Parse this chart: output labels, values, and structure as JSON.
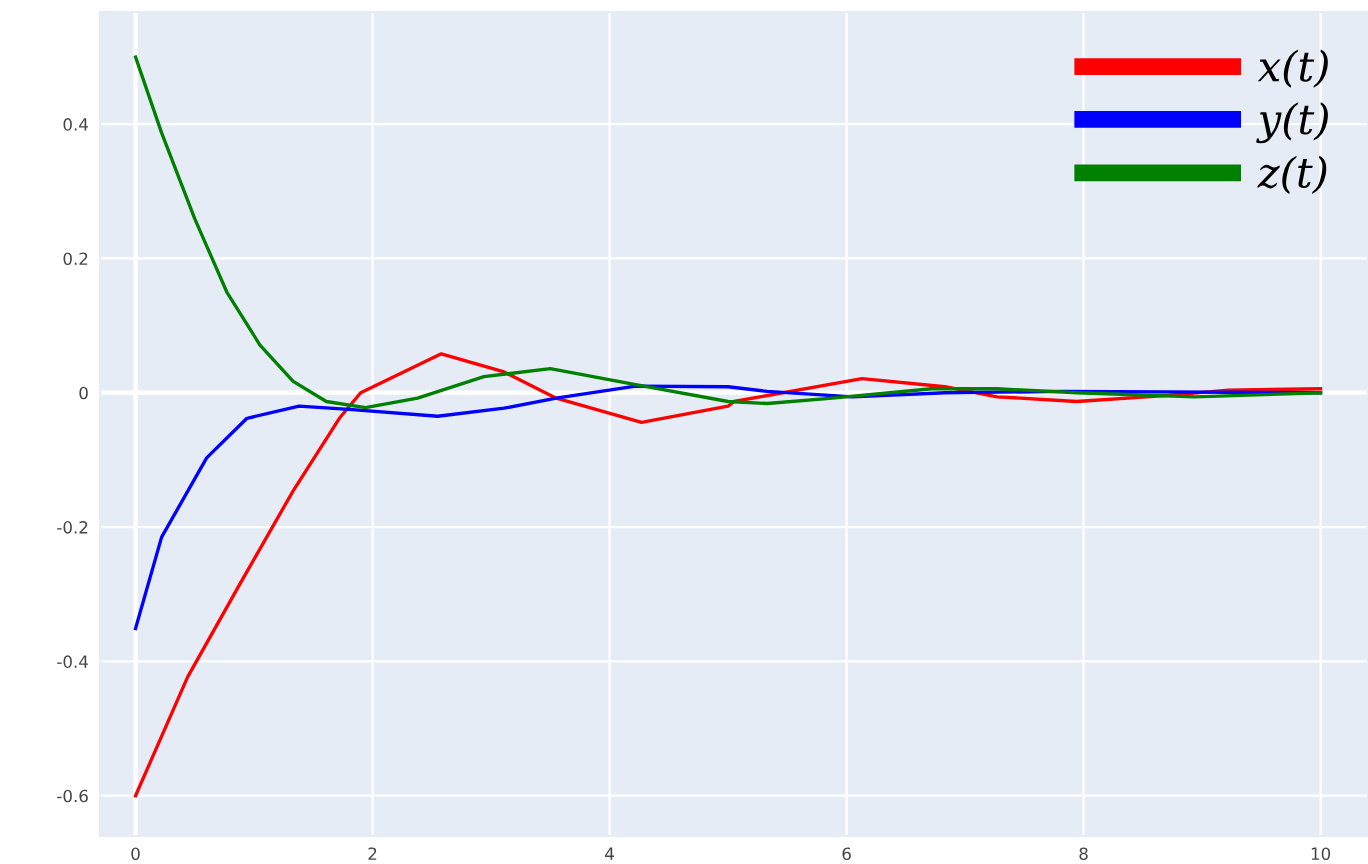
{
  "chart_data": {
    "type": "line",
    "x": [
      0,
      0.44,
      0.88,
      1.33,
      1.72,
      1.9,
      2.58,
      3.11,
      3.55,
      4.27,
      5.0,
      5.05,
      6.13,
      6.83,
      7.27,
      7.94,
      8.72,
      9.22,
      10
    ],
    "series": [
      {
        "name": "x(t)",
        "color": "#ff0000",
        "values": [
          -0.6,
          -0.423,
          -0.285,
          -0.146,
          -0.038,
          0.0,
          0.058,
          0.031,
          -0.008,
          -0.044,
          -0.02,
          -0.013,
          0.021,
          0.009,
          -0.006,
          -0.013,
          -0.004,
          0.004,
          0.006
        ]
      },
      {
        "name": "y(t)",
        "color": "#0000ff",
        "x": [
          0,
          0.22,
          0.6,
          0.94,
          1.38,
          1.83,
          2.55,
          3.11,
          3.55,
          4.22,
          5.0,
          5.33,
          6.05,
          6.83,
          7.83,
          10
        ],
        "values": [
          -0.351,
          -0.215,
          -0.097,
          -0.038,
          -0.02,
          -0.025,
          -0.035,
          -0.023,
          -0.008,
          0.01,
          0.009,
          0.002,
          -0.006,
          0.0,
          0.002,
          0.0
        ]
      },
      {
        "name": "z(t)",
        "color": "#008000",
        "x": [
          0,
          0.22,
          0.5,
          0.77,
          1.05,
          1.33,
          1.61,
          1.94,
          2.38,
          2.94,
          3.5,
          4.22,
          5.0,
          5.33,
          5.88,
          6.72,
          7.27,
          7.94,
          8.94,
          10
        ],
        "values": [
          0.5,
          0.387,
          0.259,
          0.15,
          0.071,
          0.017,
          -0.013,
          -0.022,
          -0.008,
          0.024,
          0.036,
          0.012,
          -0.013,
          -0.016,
          -0.008,
          0.006,
          0.006,
          0.0,
          -0.006,
          0.0
        ]
      }
    ],
    "xlim": [
      -0.3,
      10.4
    ],
    "xticks": [
      0,
      2,
      4,
      6,
      8,
      10
    ],
    "ylim": [
      -0.66,
      0.567
    ],
    "yticks": [
      -0.6,
      -0.4,
      -0.2,
      0,
      0.2,
      0.4
    ],
    "grid": true,
    "legend": "top right",
    "marker": "none",
    "line_style": "solid"
  }
}
